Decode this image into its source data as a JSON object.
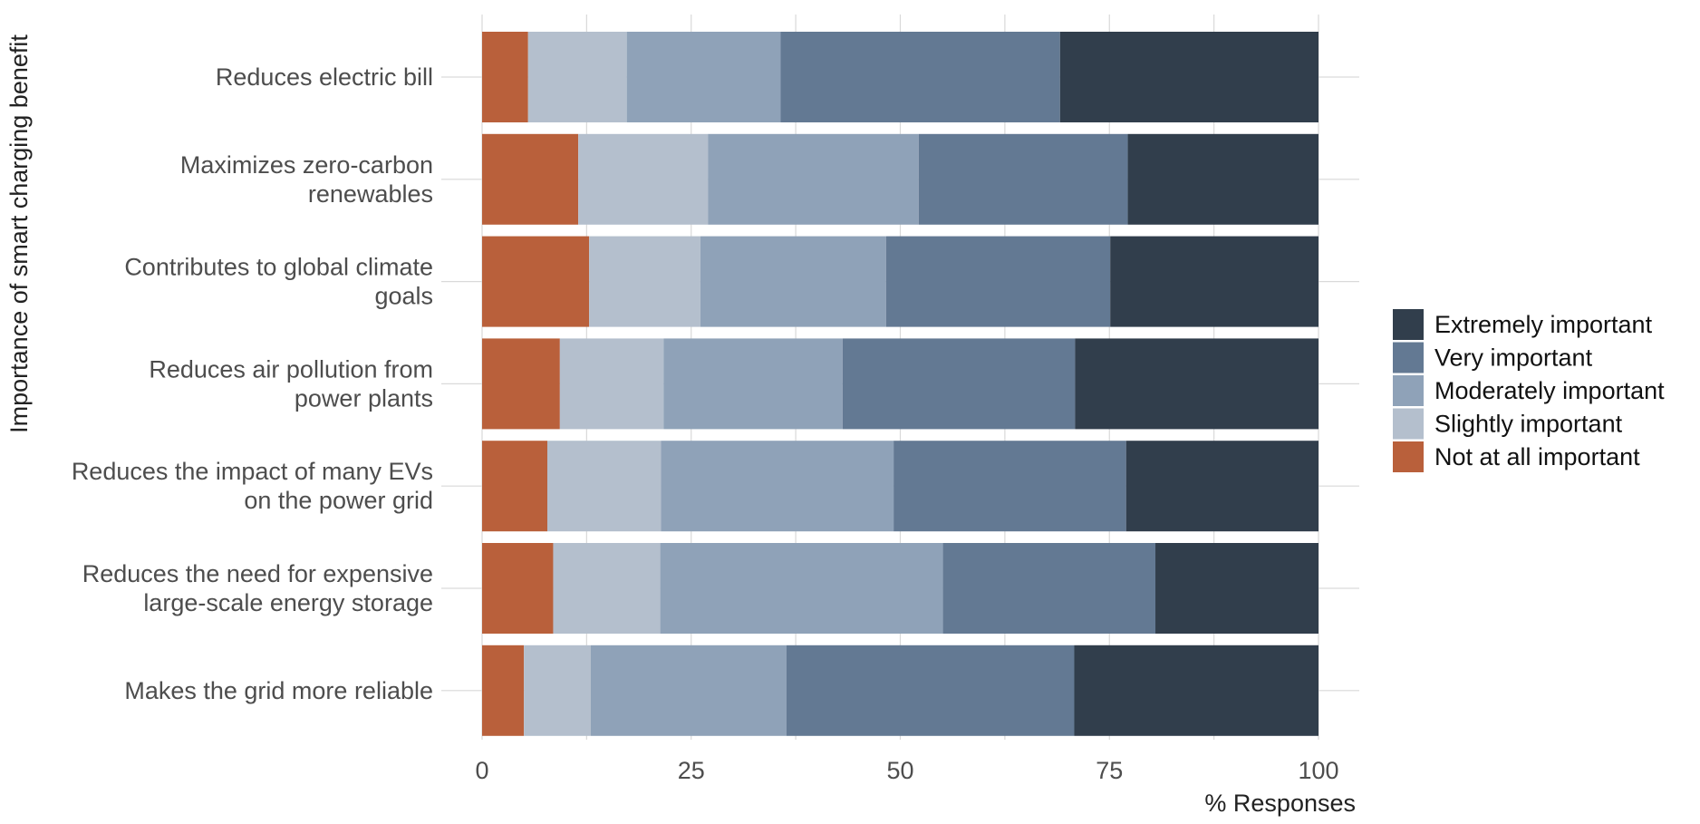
{
  "chart_data": {
    "type": "bar",
    "orientation": "horizontal",
    "stacked": true,
    "xlabel": "% Responses",
    "ylabel": "Importance of smart charging benefit",
    "xlim": [
      0,
      100
    ],
    "xticks": [
      0,
      25,
      50,
      75,
      100
    ],
    "grid": true,
    "legend_position": "right",
    "categories": [
      [
        "Reduces electric bill"
      ],
      [
        "Maximizes zero-carbon",
        "renewables"
      ],
      [
        "Contributes to global climate",
        "goals"
      ],
      [
        "Reduces air pollution from",
        "power plants"
      ],
      [
        "Reduces the impact of many EVs",
        "on the power grid"
      ],
      [
        "Reduces the need for expensive",
        "large-scale energy storage"
      ],
      [
        "Makes the grid more reliable"
      ]
    ],
    "series": [
      {
        "name": "Not at all important",
        "color": "#b9603b",
        "values": [
          5.5,
          11.5,
          12.8,
          9.3,
          7.8,
          8.5,
          5.0
        ]
      },
      {
        "name": "Slightly important",
        "color": "#b4bfcd",
        "values": [
          11.8,
          15.5,
          13.3,
          12.4,
          13.6,
          12.8,
          8.0
        ]
      },
      {
        "name": "Moderately important",
        "color": "#8fa2b8",
        "values": [
          18.4,
          25.2,
          22.2,
          21.4,
          27.8,
          33.8,
          23.4
        ]
      },
      {
        "name": "Very important",
        "color": "#637993",
        "values": [
          33.4,
          25.0,
          26.8,
          27.8,
          27.8,
          25.4,
          34.4
        ]
      },
      {
        "name": "Extremely important",
        "color": "#313e4c",
        "values": [
          30.9,
          22.8,
          24.9,
          29.1,
          23.0,
          19.5,
          29.2
        ]
      }
    ],
    "legend_order": [
      "Extremely important",
      "Very important",
      "Moderately important",
      "Slightly important",
      "Not at all important"
    ]
  }
}
